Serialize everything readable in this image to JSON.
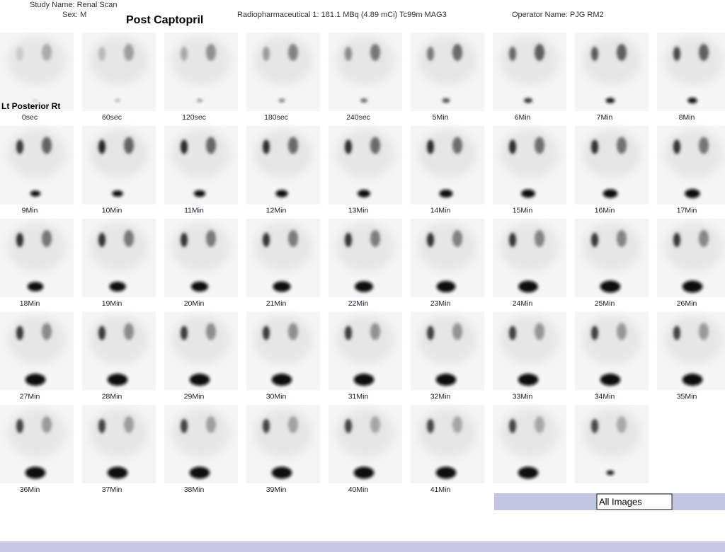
{
  "header": {
    "study_name": "Study Name: Renal Scan",
    "sex": "Sex: M",
    "title": "Post Captopril",
    "radiopharmaceutical": "Radiopharmaceutical 1: 181.1 MBq (4.89 mCi) Tc99m MAG3",
    "operator": "Operator Name: PJG RM2"
  },
  "view_label": "Lt Posterior Rt",
  "frames": [
    "0sec",
    "60sec",
    "120sec",
    "180sec",
    "240sec",
    "5Min",
    "6Min",
    "7Min",
    "8Min",
    "9Min",
    "10Min",
    "11Min",
    "12Min",
    "13Min",
    "14Min",
    "15Min",
    "16Min",
    "17Min",
    "18Min",
    "19Min",
    "20Min",
    "21Min",
    "22Min",
    "23Min",
    "24Min",
    "25Min",
    "26Min",
    "27Min",
    "28Min",
    "29Min",
    "30Min",
    "31Min",
    "32Min",
    "33Min",
    "34Min",
    "35Min",
    "36Min",
    "37Min",
    "38Min",
    "39Min",
    "40Min",
    "41Min"
  ],
  "button": "All Images"
}
